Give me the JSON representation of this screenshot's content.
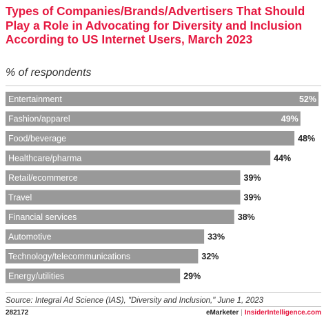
{
  "header": {
    "title": "Types of Companies/Brands/Advertisers That Should Play a Role in Advocating for Diversity and Inclusion According to US Internet Users, March 2023",
    "subtitle": "% of respondents"
  },
  "chart_data": {
    "type": "bar",
    "orientation": "horizontal",
    "categories": [
      "Entertainment",
      "Fashion/apparel",
      "Food/beverage",
      "Healthcare/pharma",
      "Retail/ecommerce",
      "Travel",
      "Financial services",
      "Automotive",
      "Technology/telecommunications",
      "Energy/utilities"
    ],
    "values": [
      52,
      49,
      48,
      44,
      39,
      39,
      38,
      33,
      32,
      29
    ],
    "value_labels": [
      "52%",
      "49%",
      "48%",
      "44%",
      "39%",
      "39%",
      "38%",
      "33%",
      "32%",
      "29%"
    ],
    "bar_color": "#999999",
    "grid": false,
    "legend": "none"
  },
  "footer": {
    "source": "Source: Integral Ad Science (IAS), \"Diversity and Inclusion,\" June 1, 2023",
    "chart_id": "282172",
    "brand_left": "eMarketer",
    "brand_sep": "|",
    "brand_right": "InsiderIntelligence.com"
  },
  "colors": {
    "accent": "#e5173f",
    "bar": "#999999",
    "text": "#222222"
  }
}
